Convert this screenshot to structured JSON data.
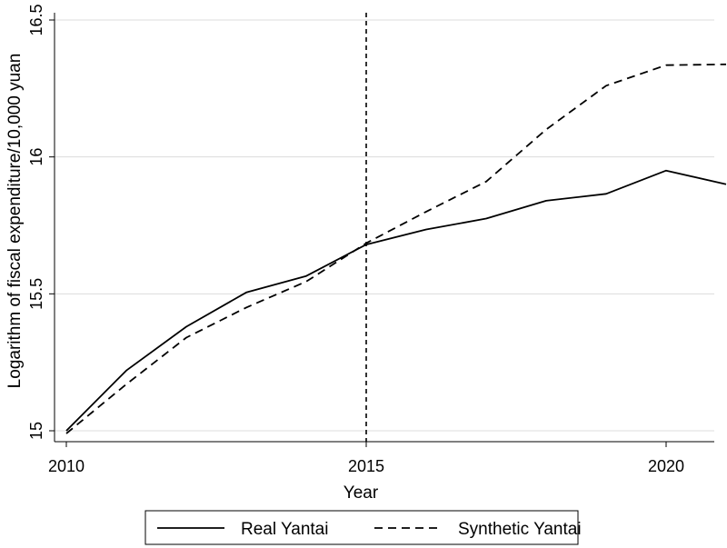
{
  "chart_data": {
    "type": "line",
    "title": "",
    "xlabel": "Year",
    "ylabel": "Logarithm of fiscal expenditure/10,000 yuan",
    "xlim": [
      2010,
      2021
    ],
    "ylim": [
      15,
      16.5
    ],
    "x_ticks": [
      2010,
      2015,
      2020
    ],
    "x_tick_labels": [
      "2010",
      "2015",
      "2020"
    ],
    "y_ticks": [
      15,
      15.5,
      16,
      16.5
    ],
    "y_tick_labels": [
      "15",
      "15.5",
      "16",
      "16.5"
    ],
    "grid": "horizontal",
    "reference_line": {
      "x": 2015,
      "style": "dashed"
    },
    "legend_position": "bottom",
    "x": [
      2010,
      2011,
      2012,
      2013,
      2014,
      2015,
      2016,
      2017,
      2018,
      2019,
      2020,
      2021
    ],
    "series": [
      {
        "name": "Real Yantai",
        "style": "solid",
        "color": "#000000",
        "values": [
          15.0,
          15.22,
          15.38,
          15.505,
          15.565,
          15.68,
          15.735,
          15.775,
          15.84,
          15.865,
          15.95,
          15.9
        ]
      },
      {
        "name": "Synthetic Yantai",
        "style": "dashed",
        "color": "#000000",
        "values": [
          14.99,
          15.17,
          15.34,
          15.45,
          15.545,
          15.685,
          15.8,
          15.91,
          16.1,
          16.26,
          16.335,
          16.338
        ]
      }
    ]
  }
}
